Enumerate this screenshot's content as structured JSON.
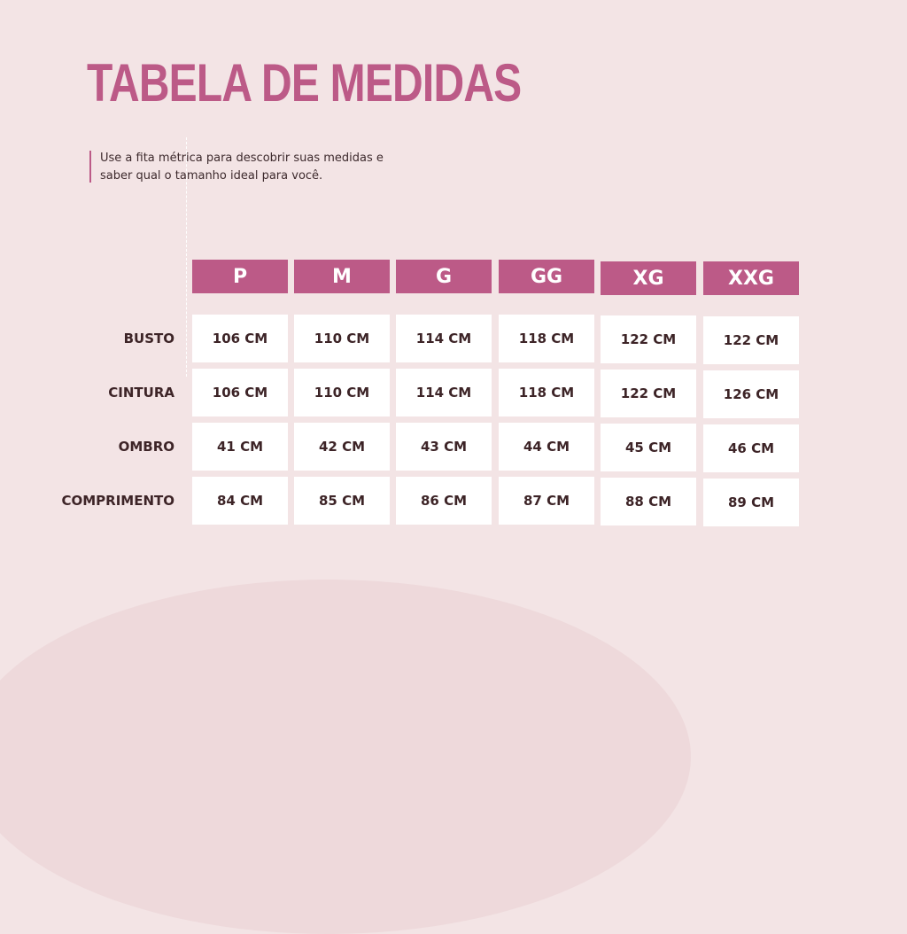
{
  "page": {
    "title": "TABELA DE MEDIDAS",
    "intro": "Use a fita métrica para descobrir suas medidas e saber qual o tamanho ideal para você."
  },
  "colors": {
    "background": "#f3e4e5",
    "accent": "#bc5a87",
    "text": "#3d2427",
    "cell": "#ffffff"
  },
  "table": {
    "sizes": [
      "P",
      "M",
      "G",
      "GG",
      "XG",
      "XXG"
    ],
    "rows": [
      {
        "label": "BUSTO",
        "values": [
          "106 CM",
          "110 CM",
          "114 CM",
          "118 CM",
          "122 CM",
          "122 CM"
        ]
      },
      {
        "label": "CINTURA",
        "values": [
          "106 CM",
          "110 CM",
          "114 CM",
          "118 CM",
          "122 CM",
          "126 CM"
        ]
      },
      {
        "label": "OMBRO",
        "values": [
          "41 CM",
          "42 CM",
          "43 CM",
          "44 CM",
          "45 CM",
          "46 CM"
        ]
      },
      {
        "label": "COMPRIMENTO",
        "values": [
          "84 CM",
          "85 CM",
          "86 CM",
          "87 CM",
          "88 CM",
          "89 CM"
        ]
      }
    ]
  }
}
